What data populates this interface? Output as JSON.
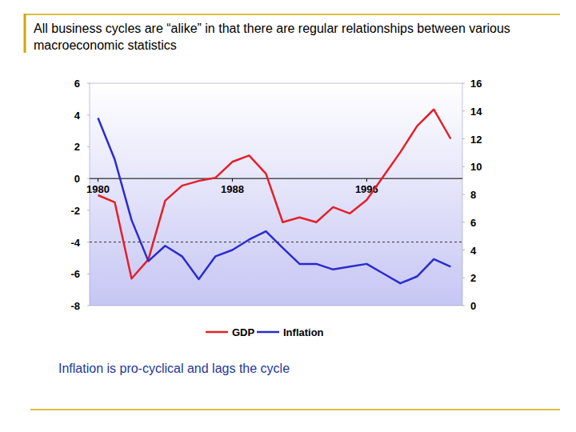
{
  "chart_data": {
    "type": "line",
    "title": "All business cycles are “alike” in that there are regular relationships between various macroeconomic statistics",
    "annotations": [
      "Inflation is pro-cyclical and lags the cycle"
    ],
    "x": [
      1980,
      1981,
      1982,
      1983,
      1984,
      1985,
      1986,
      1987,
      1988,
      1989,
      1990,
      1991,
      1992,
      1993,
      1994,
      1995,
      1996,
      1997,
      1998,
      1999,
      2000,
      2001
    ],
    "xlim": [
      1979.5,
      2001.7
    ],
    "xticks": [
      1980,
      1988,
      1996
    ],
    "ylim": [
      -8,
      6
    ],
    "yticks": [
      -8,
      -6,
      -4,
      -2,
      0,
      2,
      4,
      6
    ],
    "y2lim": [
      0,
      16
    ],
    "y2ticks": [
      0,
      2,
      4,
      6,
      8,
      10,
      12,
      14,
      16
    ],
    "reference_line": -4,
    "grid": false,
    "legend": "bottom",
    "series": [
      {
        "name": "GDP",
        "color": "#e3202a",
        "values": [
          -1.05,
          -1.5,
          -6.3,
          -5.1,
          -1.4,
          -0.45,
          -0.15,
          0.05,
          1.05,
          1.45,
          0.3,
          -2.75,
          -2.45,
          -2.75,
          -1.8,
          -2.2,
          -1.35,
          0.15,
          1.65,
          3.3,
          4.35,
          2.5
        ]
      },
      {
        "name": "Inflation",
        "color": "#2b2bd1",
        "axis": "y2",
        "values": [
          13.5,
          10.5,
          6.15,
          3.2,
          4.3,
          3.55,
          1.9,
          3.55,
          4.0,
          4.75,
          5.35,
          4.15,
          3.0,
          3.0,
          2.6,
          2.8,
          3.0,
          2.3,
          1.6,
          2.1,
          3.35,
          2.8
        ]
      }
    ]
  }
}
